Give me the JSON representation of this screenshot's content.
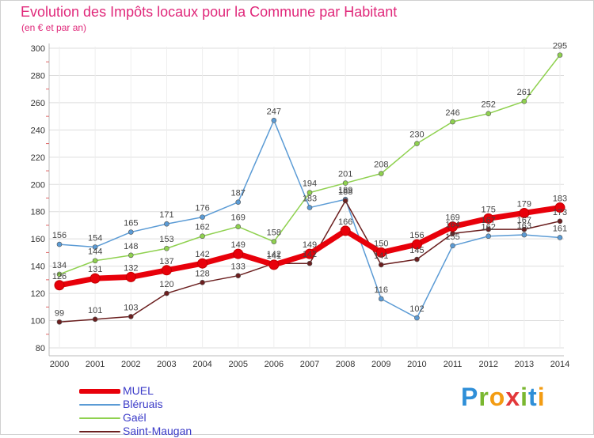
{
  "chart_data": {
    "type": "line",
    "title": "Evolution des Impôts locaux pour la Commune par Habitant",
    "subtitle": "(en € et par an)",
    "xlabel": "",
    "ylabel": "",
    "x": [
      "2000",
      "2001",
      "2002",
      "2003",
      "2004",
      "2005",
      "2006",
      "2007",
      "2008",
      "2009",
      "2010",
      "2011",
      "2012",
      "2013",
      "2014"
    ],
    "ylim": [
      80,
      300
    ],
    "yticks": [
      80,
      100,
      120,
      140,
      160,
      180,
      200,
      220,
      240,
      260,
      280,
      300
    ],
    "grid": true,
    "legend_position": "bottom-left",
    "series": [
      {
        "name": "MUEL",
        "color": "#e8000a",
        "emphasis": true,
        "values": [
          126,
          131,
          132,
          137,
          142,
          149,
          141,
          149,
          166,
          150,
          156,
          169,
          175,
          179,
          183
        ],
        "labels": [
          "126",
          "131",
          "132",
          "137",
          "142",
          "149",
          "141",
          "149",
          "166",
          "150",
          "156",
          "169",
          "175",
          "179",
          "183"
        ]
      },
      {
        "name": "Bléruais",
        "color": "#5b9bd5",
        "emphasis": false,
        "values": [
          156,
          154,
          165,
          171,
          176,
          187,
          247,
          183,
          189,
          116,
          102,
          155,
          162,
          163,
          161
        ],
        "labels": [
          "156",
          "154",
          "165",
          "171",
          "176",
          "187",
          "247",
          "183",
          "189",
          "116",
          "102",
          "155",
          "162",
          "163",
          "161"
        ]
      },
      {
        "name": "Gaël",
        "color": "#8fd14f",
        "emphasis": false,
        "values": [
          134,
          144,
          148,
          153,
          162,
          169,
          158,
          194,
          201,
          208,
          230,
          246,
          252,
          261,
          295
        ],
        "labels": [
          "134",
          "144",
          "148",
          "153",
          "162",
          "169",
          "158",
          "194",
          "201",
          "208",
          "230",
          "246",
          "252",
          "261",
          "295"
        ]
      },
      {
        "name": "Saint-Maugan",
        "color": "#6b1f1f",
        "emphasis": false,
        "values": [
          99,
          101,
          103,
          120,
          128,
          133,
          142,
          142,
          188,
          141,
          145,
          164,
          167,
          167,
          173
        ],
        "labels": [
          "99",
          "101",
          "103",
          "120",
          "128",
          "133",
          "142",
          "142",
          "188",
          "141",
          "145",
          "164",
          "167",
          "167",
          "173"
        ]
      }
    ]
  },
  "brand": {
    "text": "Proxiti",
    "letters": [
      "P",
      "r",
      "o",
      "x",
      "i",
      "t",
      "i"
    ],
    "letter_colors": [
      "#2f8fd8",
      "#7ab730",
      "#f39c12",
      "#e2383a",
      "#7ab730",
      "#2f8fd8",
      "#f39c12"
    ]
  }
}
